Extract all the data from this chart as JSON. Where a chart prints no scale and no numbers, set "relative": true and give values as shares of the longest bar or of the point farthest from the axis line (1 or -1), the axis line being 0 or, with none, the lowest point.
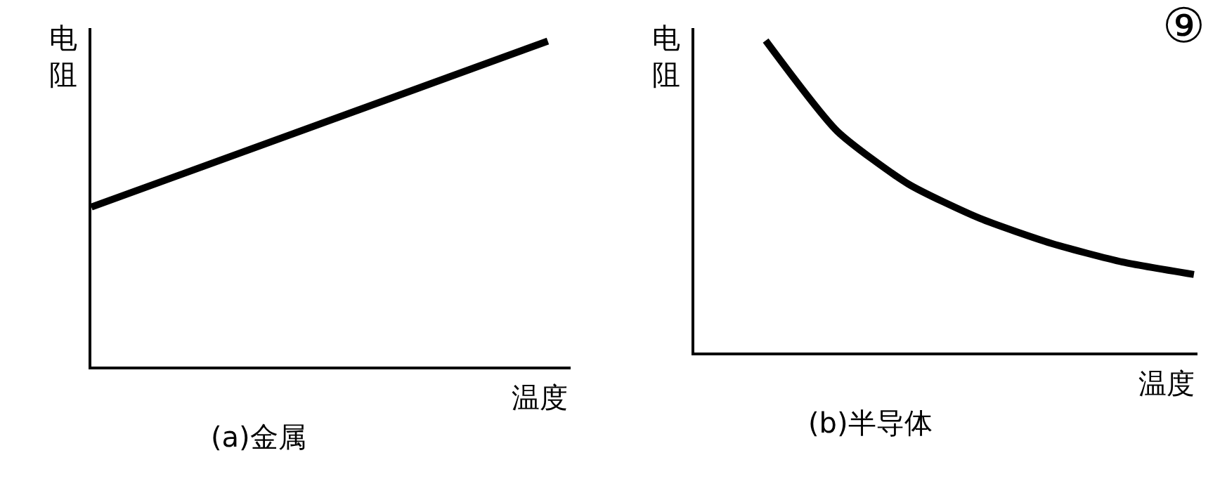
{
  "chart_data": [
    {
      "type": "line",
      "title": "(a)金属",
      "xlabel": "温度",
      "ylabel": "电阻",
      "relative": true,
      "categories": [
        null,
        null
      ],
      "grid": false,
      "series": [
        {
          "color": "#000000",
          "values": [
            0.49,
            1.0
          ]
        }
      ]
    },
    {
      "type": "line",
      "title": "(b)半导体",
      "xlabel": "温度",
      "ylabel": "电阻",
      "relative": true,
      "categories": [
        null,
        null,
        null,
        null,
        null,
        null,
        null,
        null
      ],
      "grid": false,
      "annotations": [
        "⑨"
      ],
      "series": [
        {
          "color": "#000000",
          "values": [
            null,
            1.0,
            0.71,
            0.54,
            0.43,
            0.35,
            0.29,
            0.25
          ]
        }
      ]
    }
  ]
}
